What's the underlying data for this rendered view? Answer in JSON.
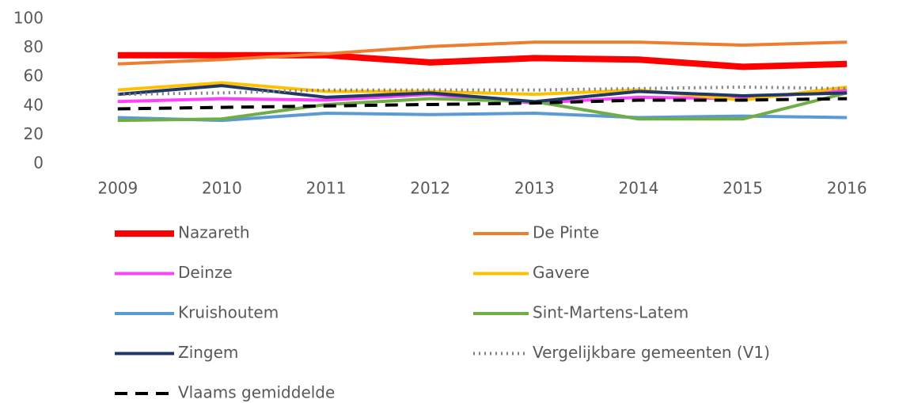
{
  "chart_data": {
    "type": "line",
    "categories": [
      "2009",
      "2010",
      "2011",
      "2012",
      "2013",
      "2014",
      "2015",
      "2016"
    ],
    "ylim": [
      0,
      100
    ],
    "yticks": [
      0,
      20,
      40,
      60,
      80,
      100
    ],
    "series": [
      {
        "name": "Nazareth",
        "color": "#ff0000",
        "width": 8,
        "dash": "solid",
        "values": [
          75,
          75,
          75,
          70,
          73,
          72,
          67,
          69
        ]
      },
      {
        "name": "De Pinte",
        "color": "#ed7d31",
        "width": 4,
        "dash": "solid",
        "values": [
          69,
          72,
          76,
          81,
          84,
          84,
          82,
          84
        ]
      },
      {
        "name": "Deinze",
        "color": "#ff40ff",
        "width": 4,
        "dash": "solid",
        "values": [
          43,
          45,
          44,
          48,
          42,
          46,
          45,
          51
        ]
      },
      {
        "name": "Gavere",
        "color": "#ffc000",
        "width": 4,
        "dash": "solid",
        "values": [
          51,
          56,
          50,
          50,
          48,
          51,
          44,
          53
        ]
      },
      {
        "name": "Kruishoutem",
        "color": "#5b9bd5",
        "width": 4,
        "dash": "solid",
        "values": [
          32,
          30,
          35,
          34,
          35,
          32,
          33,
          32
        ]
      },
      {
        "name": "Sint-Martens-Latem",
        "color": "#70ad47",
        "width": 4,
        "dash": "solid",
        "values": [
          30,
          31,
          41,
          45,
          43,
          31,
          31,
          49
        ]
      },
      {
        "name": "Zingem",
        "color": "#203864",
        "width": 4,
        "dash": "solid",
        "values": [
          48,
          54,
          46,
          49,
          43,
          50,
          47,
          49
        ]
      },
      {
        "name": "Vergelijkbare gemeenten (V1)",
        "color": "#7f7f7f",
        "width": 4,
        "dash": "dotted",
        "values": [
          48,
          49,
          51,
          51,
          51,
          52,
          53,
          52
        ]
      },
      {
        "name": "Vlaams gemiddelde",
        "color": "#000000",
        "width": 4,
        "dash": "dashed",
        "values": [
          38,
          39,
          40,
          41,
          42,
          44,
          44,
          45
        ]
      }
    ]
  }
}
